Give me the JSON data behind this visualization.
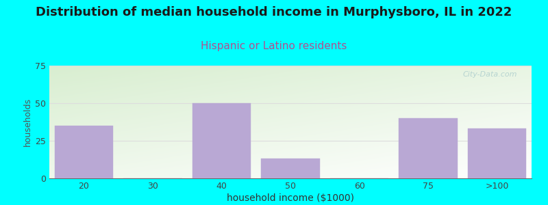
{
  "title": "Distribution of median household income in Murphysboro, IL in 2022",
  "subtitle": "Hispanic or Latino residents",
  "xlabel": "household income ($1000)",
  "ylabel": "households",
  "categories": [
    "20",
    "30",
    "40",
    "50",
    "60",
    "75",
    ">100"
  ],
  "values": [
    35,
    0,
    50,
    13,
    0,
    40,
    33
  ],
  "bar_color": "#B9A8D4",
  "bar_edge_color": "#B9A8D4",
  "bg_outer_color": "#00FFFF",
  "plot_bg_top_left_color": "#D8EED0",
  "plot_bg_bottom_right_color": "#FFFFFF",
  "title_color": "#1a1a1a",
  "subtitle_color": "#B05090",
  "axis_color": "#666666",
  "tick_color": "#444444",
  "gridline_color": "#DDDDDD",
  "ylabel_color": "#555555",
  "xlabel_color": "#333333",
  "ylim": [
    0,
    75
  ],
  "yticks": [
    0,
    25,
    50,
    75
  ],
  "title_fontsize": 13,
  "subtitle_fontsize": 11,
  "xlabel_fontsize": 10,
  "ylabel_fontsize": 9,
  "tick_fontsize": 9,
  "watermark_text": "City-Data.com",
  "watermark_color": "#AACCCC"
}
